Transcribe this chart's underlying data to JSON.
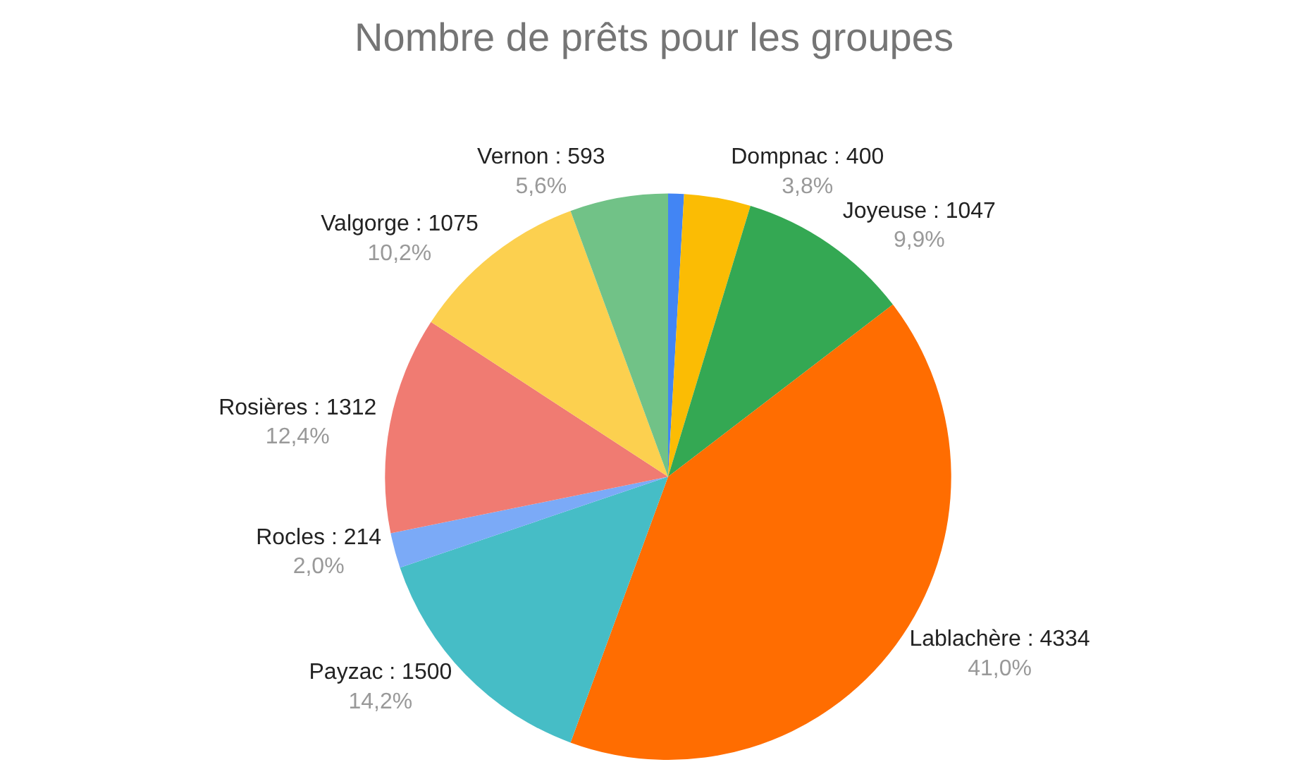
{
  "chart_data": {
    "type": "pie",
    "title": "Nombre de prêts pour les groupes",
    "categories": [
      null,
      "Dompnac : 400",
      "Joyeuse : 1047",
      "Lablachère : 4334",
      "Payzac : 1500",
      "Rocles : 214",
      "Rosières : 1312",
      "Valgorge : 1075",
      "Vernon : 593"
    ],
    "values": [
      0.9,
      3.8,
      9.9,
      41.0,
      14.2,
      2.0,
      12.4,
      10.2,
      5.6
    ],
    "value_labels": [
      null,
      "3,8%",
      "9,9%",
      "41,0%",
      "14,2%",
      "2,0%",
      "12,4%",
      "10,2%",
      "5,6%"
    ],
    "colors": [
      "#4285f4",
      "#fbbc04",
      "#34a853",
      "#ff6d01",
      "#46bdc6",
      "#7baaf7",
      "#f07b72",
      "#fcd04f",
      "#71c287"
    ],
    "legend": false
  }
}
